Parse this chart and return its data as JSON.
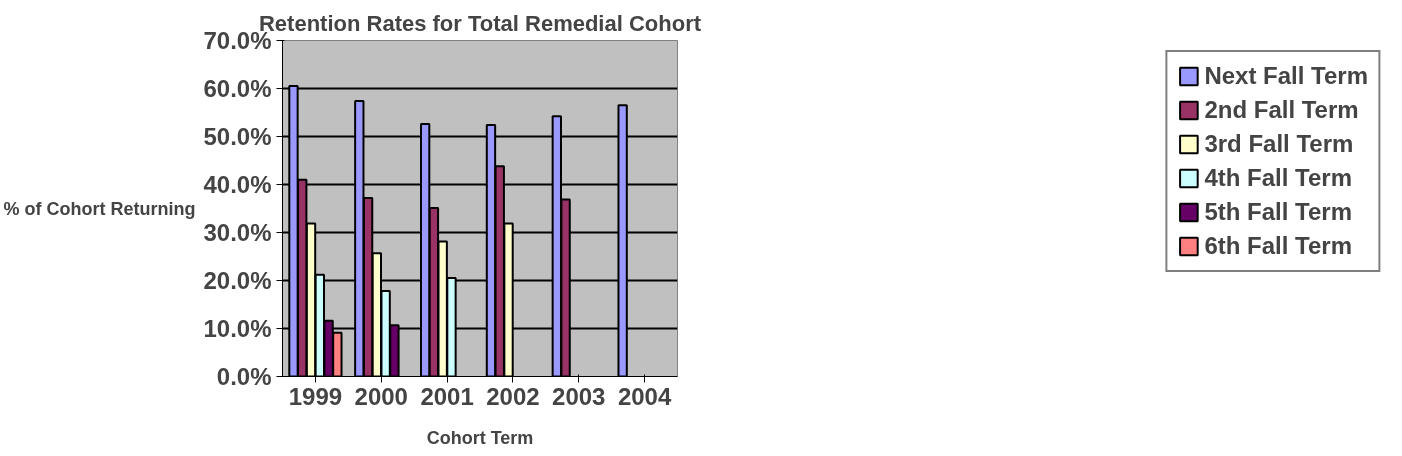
{
  "chart_data": {
    "type": "bar",
    "title": "Retention Rates for Total Remedial Cohort",
    "xlabel": "Cohort Term",
    "ylabel": "% of Cohort Returning",
    "categories": [
      "1999",
      "2000",
      "2001",
      "2002",
      "2003",
      "2004"
    ],
    "series": [
      {
        "name": "Next Fall Term",
        "color": "#9999ff",
        "values": [
          60.5,
          57.4,
          52.6,
          52.4,
          54.2,
          56.5
        ]
      },
      {
        "name": "2nd Fall Term",
        "color": "#993366",
        "values": [
          41.0,
          37.2,
          35.1,
          43.8,
          36.9,
          null
        ]
      },
      {
        "name": "3rd Fall Term",
        "color": "#ffffcc",
        "values": [
          31.9,
          25.7,
          28.1,
          31.9,
          null,
          null
        ]
      },
      {
        "name": "4th Fall Term",
        "color": "#ccffff",
        "values": [
          21.2,
          17.8,
          20.5,
          null,
          null,
          null
        ]
      },
      {
        "name": "5th Fall Term",
        "color": "#660066",
        "values": [
          11.6,
          10.7,
          null,
          null,
          null,
          null
        ]
      },
      {
        "name": "6th Fall Term",
        "color": "#ff8080",
        "values": [
          9.1,
          null,
          null,
          null,
          null,
          null
        ]
      }
    ],
    "ylim": [
      0,
      70
    ],
    "yticks": [
      {
        "value": 0,
        "label": "0.0%"
      },
      {
        "value": 10,
        "label": "10.0%"
      },
      {
        "value": 20,
        "label": "20.0%"
      },
      {
        "value": 30,
        "label": "30.0%"
      },
      {
        "value": 40,
        "label": "40.0%"
      },
      {
        "value": 50,
        "label": "50.0%"
      },
      {
        "value": 60,
        "label": "60.0%"
      },
      {
        "value": 70,
        "label": "70.0%"
      }
    ],
    "grid": "y",
    "legend": "right"
  }
}
